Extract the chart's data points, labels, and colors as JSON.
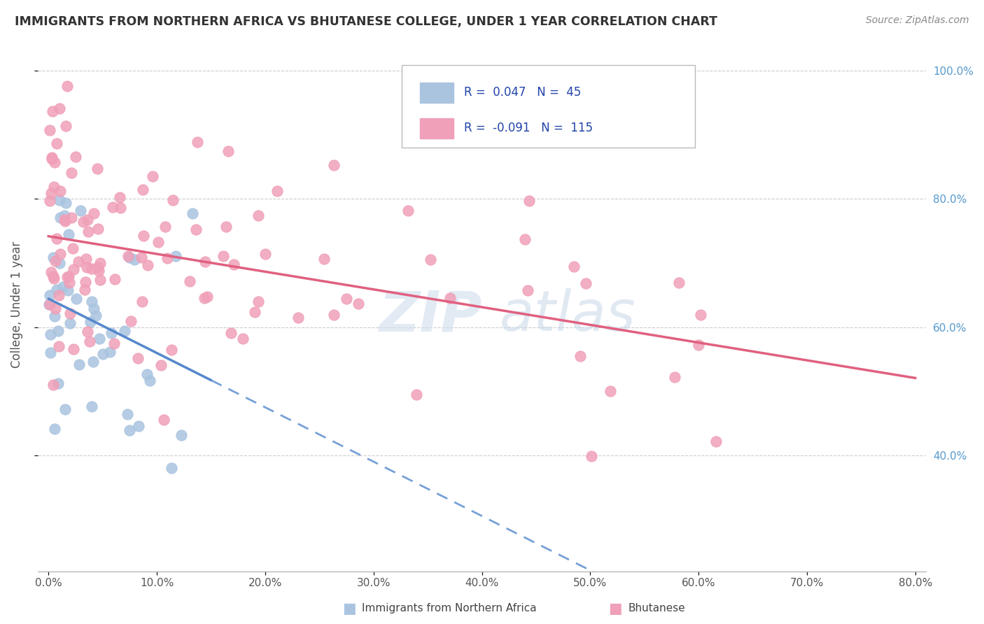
{
  "title": "IMMIGRANTS FROM NORTHERN AFRICA VS BHUTANESE COLLEGE, UNDER 1 YEAR CORRELATION CHART",
  "source": "Source: ZipAtlas.com",
  "ylabel": "College, Under 1 year",
  "r_blue": 0.047,
  "n_blue": 45,
  "r_pink": -0.091,
  "n_pink": 115,
  "blue_color": "#aac4e0",
  "pink_color": "#f0a0b8",
  "trend_blue": "#5588cc",
  "trend_pink": "#e06080",
  "xmin": 0.0,
  "xmax": 0.8,
  "ymin": 0.22,
  "ymax": 1.05,
  "x_ticks": [
    0.0,
    0.1,
    0.2,
    0.3,
    0.4,
    0.5,
    0.6,
    0.7,
    0.8
  ],
  "y_ticks": [
    0.4,
    0.6,
    0.8,
    1.0
  ],
  "watermark_zip": "ZIP",
  "watermark_atlas": "atlas"
}
